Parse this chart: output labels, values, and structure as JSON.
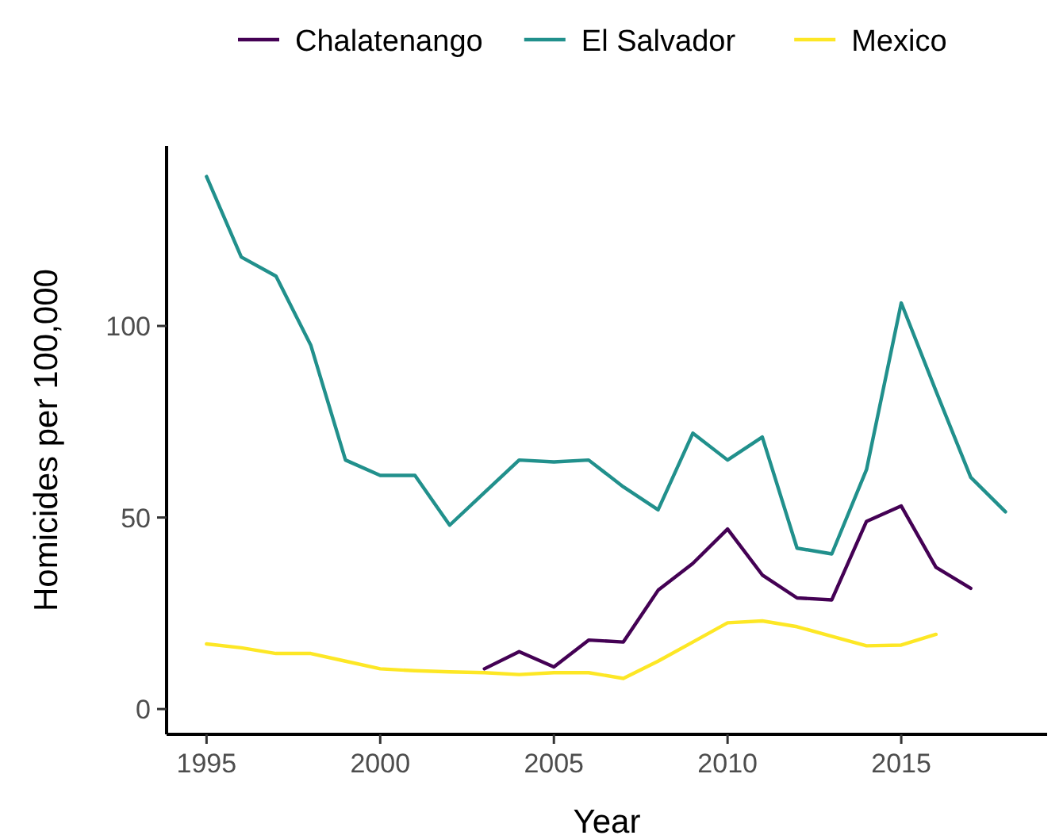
{
  "chart_data": {
    "type": "line",
    "xlabel": "Year",
    "ylabel": "Homicides per 100,000",
    "xlim": [
      1993.85,
      2019.2
    ],
    "xticks": [
      1995,
      2000,
      2005,
      2010,
      2015
    ],
    "ylim": [
      -6.6,
      147
    ],
    "yticks": [
      0,
      50,
      100
    ],
    "grid": false,
    "legend": "top",
    "series": [
      {
        "name": "Chalatenango",
        "color": "#440154",
        "x": [
          2003,
          2004,
          2005,
          2006,
          2007,
          2008,
          2009,
          2010,
          2011,
          2012,
          2013,
          2014,
          2015,
          2016,
          2017
        ],
        "values": [
          10.5,
          15,
          11,
          18,
          17.5,
          31,
          38,
          47,
          35,
          29,
          28.5,
          49,
          53,
          37,
          31.5
        ]
      },
      {
        "name": "El Salvador",
        "color": "#21908c",
        "x": [
          1995,
          1996,
          1997,
          1998,
          1999,
          2000,
          2001,
          2002,
          2003,
          2004,
          2005,
          2006,
          2007,
          2008,
          2009,
          2010,
          2011,
          2012,
          2013,
          2014,
          2015,
          2016,
          2017,
          2018
        ],
        "values": [
          139,
          118,
          113,
          95,
          65,
          61,
          61,
          48,
          56.5,
          65,
          64.5,
          65,
          58,
          52,
          72,
          65,
          71,
          42,
          40.5,
          62.5,
          106,
          83,
          60.5,
          51.5
        ]
      },
      {
        "name": "Mexico",
        "color": "#fde725",
        "x": [
          1995,
          1996,
          1997,
          1998,
          1999,
          2000,
          2001,
          2002,
          2003,
          2004,
          2005,
          2006,
          2007,
          2008,
          2009,
          2010,
          2011,
          2012,
          2013,
          2014,
          2015,
          2016
        ],
        "values": [
          17,
          16,
          14.5,
          14.5,
          12.5,
          10.5,
          10,
          9.7,
          9.5,
          9,
          9.5,
          9.5,
          8,
          12.5,
          17.5,
          22.5,
          23,
          21.5,
          19,
          16.5,
          16.7,
          19.5
        ]
      }
    ]
  }
}
